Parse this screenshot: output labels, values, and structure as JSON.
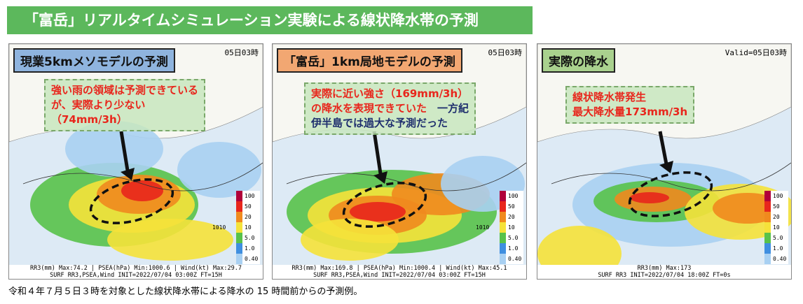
{
  "header": {
    "title": "「富岳」リアルタイムシミュレーション実験による線状降水帯の予測"
  },
  "colorbar": [
    "100",
    "50",
    "20",
    "10",
    "5.0",
    "1.0",
    "0.40"
  ],
  "panels": [
    {
      "label": "現業5kmメソモデルの予測",
      "label_color": "#8fb4de",
      "valid": "05日03時",
      "isobar": "1010",
      "callout": [
        [
          {
            "text": "強い雨の領域は予測できている",
            "color": "#e8261c"
          }
        ],
        [
          {
            "text": "が、実際より少ない",
            "color": "#e8261c"
          }
        ],
        [
          {
            "text": "（74mm/3h）",
            "color": "#e8261c"
          }
        ]
      ],
      "footer": [
        "RR3(mm) Max:74.2 | PSEA(hPa) Min:1000.6 | Wind(kt) Max:29.7",
        "SURF RR3,PSEA,Wind INIT=2022/07/04 03:00Z FT=15H"
      ]
    },
    {
      "label": "「富岳」1km局地モデルの予測",
      "label_color": "#f2a772",
      "valid": "05日03時",
      "isobar": "1010",
      "callout": [
        [
          {
            "text": "実際に近い強さ（169mm/3h）",
            "color": "#e8261c"
          }
        ],
        [
          {
            "text": "の降水を表現できていた",
            "color": "#e8261c"
          },
          {
            "text": "　一方紀",
            "color": "#1f2f6e"
          }
        ],
        [
          {
            "text": "伊半島では過大な予測だった",
            "color": "#1f2f6e"
          }
        ]
      ],
      "footer": [
        "RR3(mm) Max:169.8 | PSEA(hPa) Min:1000.4 | Wind(kt) Max:45.1",
        "SURF RR3,PSEA,Wind INIT=2022/07/04 03:00Z FT=15H"
      ]
    },
    {
      "label": "実際の降水",
      "label_color": "#a9d18e",
      "valid": "Valid=05日03時",
      "callout": [
        [
          {
            "text": "線状降水帯発生",
            "color": "#e8261c"
          }
        ],
        [
          {
            "text": "最大降水量173mm/3h",
            "color": "#e8261c"
          }
        ]
      ],
      "footer": [
        "RR3(mm) Max:173",
        "SURF RR3 INIT=2022/07/04 18:00Z FT=0s"
      ]
    }
  ],
  "caption": "令和４年７月５日３時を対象とした線状降水帯による降水の 15 時間前からの予測例。"
}
